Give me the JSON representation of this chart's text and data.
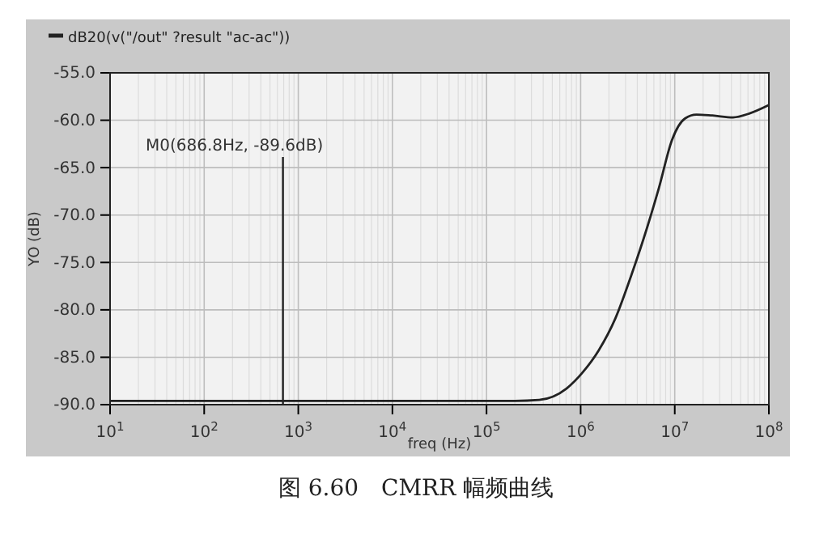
{
  "chart_data": {
    "type": "line",
    "xlabel": "freq (Hz)",
    "ylabel": "YO (dB)",
    "log": "x",
    "grid": true,
    "legend": "top left",
    "line_style": "solid",
    "marker": "none",
    "xlim": [
      10,
      100000000
    ],
    "ylim": [
      -90,
      -55
    ],
    "xticks": [
      {
        "value": 10,
        "label": "10$^{1}$"
      },
      {
        "value": 100,
        "label": "10$^{2}$"
      },
      {
        "value": 1000,
        "label": "10$^{3}$"
      },
      {
        "value": 10000,
        "label": "10$^{4}$"
      },
      {
        "value": 100000,
        "label": "10$^{5}$"
      },
      {
        "value": 1000000,
        "label": "10$^{6}$"
      },
      {
        "value": 10000000,
        "label": "10$^{7}$"
      },
      {
        "value": 100000000,
        "label": "10$^{8}$"
      }
    ],
    "yticks": [
      {
        "value": -90,
        "label": "-90.0"
      },
      {
        "value": -85,
        "label": "-85.0"
      },
      {
        "value": -80,
        "label": "-80.0"
      },
      {
        "value": -75,
        "label": "-75.0"
      },
      {
        "value": -70,
        "label": "-70.0"
      },
      {
        "value": -65,
        "label": "-65.0"
      },
      {
        "value": -60,
        "label": "-60.0"
      },
      {
        "value": -55,
        "label": "-55.0"
      }
    ],
    "series": [
      {
        "name": "dB20(v(\"/out\" ?result \"ac-ac\"))",
        "color": "#222222",
        "x": [
          10,
          100,
          1000,
          10000,
          100000,
          200000,
          363000,
          708000,
          1050000,
          1550000,
          2340000,
          3470000,
          5130000,
          6760000,
          9330000,
          12900000,
          17000000,
          25100000,
          41700000,
          61700000,
          100000000
        ],
        "values": [
          -89.6,
          -89.6,
          -89.6,
          -89.6,
          -89.6,
          -89.6,
          -89.5,
          -88.3,
          -86.6,
          -84.3,
          -80.9,
          -76.3,
          -71.2,
          -67.2,
          -62.1,
          -59.8,
          -59.4,
          -59.5,
          -59.7,
          -59.3,
          -58.4
        ]
      }
    ],
    "ref_lines": [
      {
        "axis": "x",
        "value": 686.8,
        "label": "M0(686.8Hz, -89.6dB)",
        "color": "#222222"
      }
    ],
    "annotations": [
      "图 6.60　CMRR 幅频曲线"
    ]
  }
}
